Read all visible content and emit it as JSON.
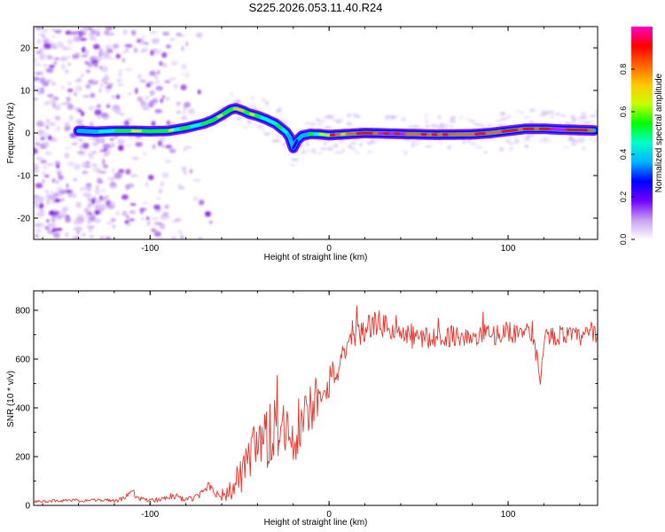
{
  "page_title": "S225.2026.053.11.40.R24",
  "chart_data": [
    {
      "type": "heatmap",
      "title": "S225.2026.053.11.40.R24",
      "xlabel": "Height of straight line (km)",
      "ylabel": "Frequency (Hz)",
      "xlim": [
        -165,
        150
      ],
      "ylim": [
        -25,
        25
      ],
      "xticks": [
        -100,
        0,
        100
      ],
      "yticks": [
        -20,
        -10,
        0,
        10,
        20
      ],
      "colorbar": {
        "label": "Normalized spectral amplitude",
        "range": [
          0,
          1
        ],
        "ticks": [
          "0.0",
          "0.2",
          "0.4",
          "0.6",
          "0.8"
        ],
        "tick_values": [
          0,
          0.2,
          0.4,
          0.6,
          0.8
        ],
        "colors": [
          "#ffffff",
          "#c8a0f0",
          "#7000ff",
          "#0000ff",
          "#00b4ff",
          "#00ffc8",
          "#00ff00",
          "#c8ff00",
          "#ffc800",
          "#ff6400",
          "#ff0000",
          "#ff00c8"
        ]
      },
      "ridge": {
        "x": [
          -140,
          -130,
          -120,
          -110,
          -100,
          -90,
          -80,
          -70,
          -65,
          -60,
          -55,
          -52,
          -48,
          -45,
          -40,
          -35,
          -30,
          -27,
          -24,
          -22,
          -20,
          -18,
          -15,
          -10,
          -5,
          0,
          20,
          40,
          60,
          80,
          90,
          100,
          110,
          120,
          130,
          148
        ],
        "y": [
          0.5,
          0.3,
          0.5,
          0.5,
          0.4,
          0.5,
          1.2,
          2.2,
          3.0,
          4.2,
          5.5,
          5.8,
          5.2,
          4.6,
          4.0,
          3.2,
          2.2,
          1.2,
          0.2,
          -1.0,
          -3.5,
          -1.8,
          -0.6,
          -0.2,
          -0.3,
          -0.5,
          0.0,
          -0.2,
          -0.4,
          -0.3,
          0.0,
          0.5,
          1.0,
          1.0,
          0.8,
          0.6
        ]
      },
      "ridge_amplitude": {
        "x": [
          -140,
          -120,
          -110,
          -90,
          -80,
          -60,
          -50,
          -40,
          -30,
          -20,
          -10,
          0,
          10,
          30,
          40,
          60,
          80,
          100,
          110,
          120,
          140,
          148
        ],
        "a": [
          0.4,
          0.5,
          0.6,
          0.55,
          0.5,
          0.6,
          0.65,
          0.55,
          0.5,
          0.35,
          0.45,
          0.8,
          0.75,
          0.95,
          0.9,
          0.85,
          0.85,
          0.9,
          0.9,
          0.95,
          0.9,
          0.85
        ]
      }
    },
    {
      "type": "line",
      "xlabel": "Height of straight line (km)",
      "ylabel": "SNR (10 * v/v)",
      "xlim": [
        -165,
        150
      ],
      "ylim": [
        0,
        880
      ],
      "xticks": [
        -100,
        0,
        100
      ],
      "yticks": [
        0,
        200,
        400,
        600,
        800
      ],
      "series": [
        {
          "name": "SNR",
          "color": "#e8332a",
          "x": [
            -165,
            -150,
            -140,
            -130,
            -120,
            -115,
            -110,
            -105,
            -100,
            -95,
            -90,
            -85,
            -80,
            -75,
            -70,
            -67,
            -65,
            -62,
            -60,
            -55,
            -50,
            -45,
            -40,
            -35,
            -30,
            -25,
            -20,
            -15,
            -10,
            -5,
            0,
            5,
            10,
            15,
            20,
            25,
            30,
            35,
            40,
            45,
            50,
            60,
            70,
            80,
            90,
            100,
            110,
            115,
            118,
            120,
            130,
            140,
            150
          ],
          "y": [
            15,
            20,
            18,
            22,
            20,
            25,
            55,
            25,
            20,
            25,
            40,
            30,
            25,
            30,
            55,
            90,
            70,
            45,
            40,
            60,
            110,
            170,
            230,
            260,
            300,
            320,
            300,
            340,
            400,
            480,
            510,
            560,
            620,
            690,
            720,
            750,
            740,
            720,
            700,
            690,
            690,
            680,
            700,
            680,
            700,
            710,
            710,
            650,
            520,
            690,
            700,
            690,
            710
          ],
          "jitter": [
            5,
            6,
            6,
            6,
            8,
            10,
            15,
            10,
            10,
            12,
            14,
            12,
            10,
            12,
            20,
            30,
            25,
            20,
            25,
            45,
            80,
            110,
            130,
            140,
            140,
            140,
            150,
            130,
            120,
            90,
            80,
            70,
            60,
            55,
            55,
            55,
            55,
            50,
            50,
            50,
            50,
            45,
            45,
            45,
            45,
            45,
            45,
            40,
            30,
            40,
            40,
            40,
            40
          ]
        }
      ]
    }
  ]
}
